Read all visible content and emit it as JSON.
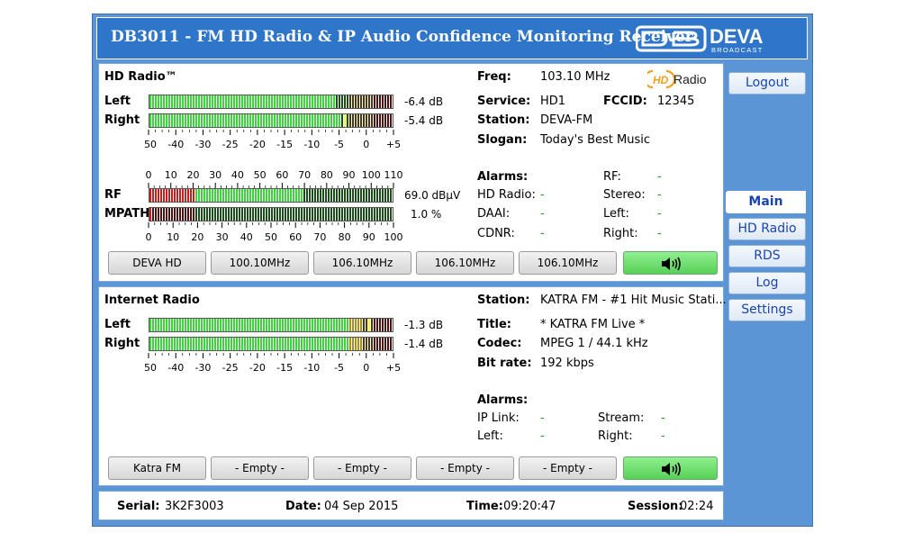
{
  "title": "DB3011 - FM HD Radio & IP Audio Confidence Monitoring Receiver",
  "brand": {
    "name": "DEVA",
    "sub": "BROADCAST"
  },
  "colors": {
    "accent": "#2f75c9",
    "frame": "#5b95d6",
    "meter_green": "#3ed43e",
    "meter_red": "#d42020",
    "nav_text": "#1a44b0",
    "status_green": "#1a9a1a"
  },
  "hd": {
    "title": "HD Radio™",
    "left_label": "Left",
    "right_label": "Right",
    "left_db": "-6.4 dB",
    "right_db": "-5.4 dB",
    "left_level": 0.757,
    "right_level": 0.783,
    "right_peak": 0.8,
    "audio_scale": [
      "-50",
      "-40",
      "-30",
      "-25",
      "-20",
      "-15",
      "-10",
      "-5",
      "0",
      "+5"
    ],
    "rf_scale": [
      "0",
      "10",
      "20",
      "30",
      "40",
      "50",
      "60",
      "70",
      "80",
      "90",
      "100",
      "110"
    ],
    "rf_label": "RF",
    "rf_value": "69.0 dBµV",
    "rf_level": 69.0,
    "mpath_label": "MPATH",
    "mpath_value": "1.0 %",
    "mpath_level": 1.0,
    "mpath_scale": [
      "0",
      "10",
      "20",
      "30",
      "40",
      "50",
      "60",
      "70",
      "80",
      "90",
      "100"
    ],
    "freq_label": "Freq:",
    "freq": "103.10 MHz",
    "logo_hd": "HD",
    "logo_radio": "Radio",
    "service_label": "Service:",
    "service": "HD1",
    "fccid_label": "FCCID:",
    "fccid": "12345",
    "station_label": "Station:",
    "station": "DEVA-FM",
    "slogan_label": "Slogan:",
    "slogan": "Today's Best Music",
    "alarms_label": "Alarms:",
    "alarms": {
      "hdradio_label": "HD Radio:",
      "hdradio": "-",
      "daai_label": "DAAI:",
      "daai": "-",
      "cdnr_label": "CDNR:",
      "cdnr": "-",
      "rf_label": "RF:",
      "rf": "-",
      "stereo_label": "Stereo:",
      "stereo": "-",
      "left_label": "Left:",
      "left": "-",
      "right_label": "Right:",
      "right": "-"
    },
    "presets": [
      "DEVA HD",
      "100.10MHz",
      "106.10MHz",
      "106.10MHz",
      "106.10MHz"
    ],
    "speaker_icon": "speaker-icon"
  },
  "ip": {
    "title": "Internet Radio",
    "left_label": "Left",
    "right_label": "Right",
    "left_db": "-1.3 dB",
    "right_db": "-1.4 dB",
    "left_level": 0.875,
    "right_level": 0.873,
    "left_peak": 0.895,
    "audio_scale": [
      "-50",
      "-40",
      "-30",
      "-25",
      "-20",
      "-15",
      "-10",
      "-5",
      "0",
      "+5"
    ],
    "station_label": "Station:",
    "station": "KATRA FM - #1 Hit Music Stati...",
    "title_label": "Title:",
    "title_value": "* KATRA FM Live *",
    "codec_label": "Codec:",
    "codec": "MPEG 1 / 44.1 kHz",
    "bitrate_label": "Bit rate:",
    "bitrate": "192 kbps",
    "alarms_label": "Alarms:",
    "alarms": {
      "iplink_label": "IP Link:",
      "iplink": "-",
      "left_label": "Left:",
      "left": "-",
      "stream_label": "Stream:",
      "stream": "-",
      "right_label": "Right:",
      "right": "-"
    },
    "presets": [
      "Katra FM",
      "- Empty -",
      "- Empty -",
      "- Empty -",
      "- Empty -"
    ]
  },
  "nav": [
    "Logout",
    "Main",
    "HD Radio",
    "RDS",
    "Log",
    "Settings"
  ],
  "status": {
    "serial_label": "Serial:",
    "serial": "3K2F3003",
    "date_label": "Date:",
    "date": "04 Sep 2015",
    "time_label": "Time:",
    "time": "09:20:47",
    "session_label": "Session:",
    "session": "02:24"
  }
}
